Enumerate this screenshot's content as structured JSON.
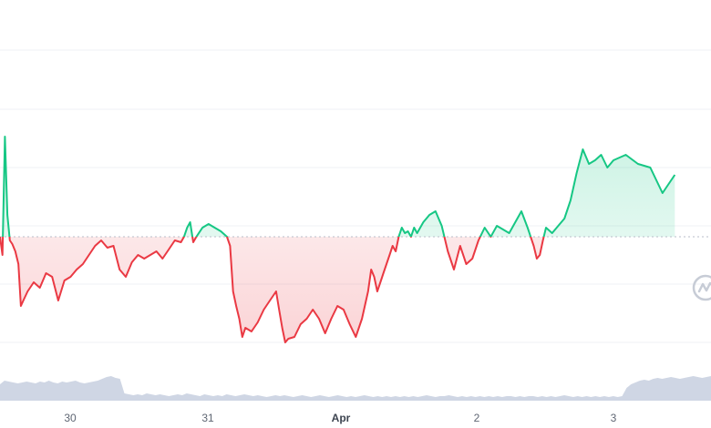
{
  "chart_data": {
    "type": "line",
    "title": "",
    "xlabel": "",
    "ylabel": "",
    "x_tick_labels": [
      "30",
      "31",
      "Apr",
      "2",
      "3"
    ],
    "x_tick_bold": [
      false,
      false,
      true,
      false,
      false
    ],
    "baseline_value": 0,
    "ylim": [
      -60,
      55
    ],
    "grid": true,
    "colors": {
      "up": "#16c784",
      "down": "#ea3943",
      "volume": "#cfd6e4",
      "grid": "#eff1f5",
      "baseline": "#b8bec9"
    },
    "icon": "watermark-logo-icon",
    "series": [
      {
        "x": [
          0,
          0.004,
          0.008,
          0.012,
          0.016,
          0.02,
          0.025,
          0.03,
          0.034,
          0.038,
          0.045,
          0.055,
          0.065,
          0.075,
          0.085,
          0.095,
          0.105,
          0.115,
          0.125,
          0.135,
          0.145,
          0.155,
          0.165,
          0.175,
          0.185,
          0.195,
          0.205,
          0.215,
          0.225,
          0.235,
          0.245,
          0.255,
          0.265,
          0.275,
          0.285,
          0.295,
          0.3,
          0.305,
          0.31,
          0.315,
          0.32,
          0.33,
          0.34,
          0.35,
          0.36,
          0.37,
          0.375,
          0.38,
          0.385,
          0.39,
          0.395,
          0.4,
          0.41,
          0.42,
          0.43,
          0.44,
          0.45,
          0.455,
          0.46,
          0.465,
          0.47,
          0.48,
          0.49,
          0.5,
          0.51,
          0.52,
          0.53,
          0.54,
          0.55,
          0.56,
          0.57,
          0.58,
          0.59,
          0.6,
          0.605,
          0.61,
          0.615,
          0.62,
          0.625,
          0.63,
          0.635,
          0.64,
          0.645,
          0.65,
          0.655,
          0.66,
          0.665,
          0.67,
          0.675,
          0.68,
          0.69,
          0.7,
          0.71,
          0.72,
          0.73,
          0.74,
          0.75,
          0.76,
          0.77,
          0.78,
          0.79,
          0.8
        ],
        "y": [
          0,
          -10,
          55,
          12,
          -2,
          -4,
          -8,
          -15,
          -38,
          -35,
          -30,
          -25,
          -28,
          -20,
          -22,
          -35,
          -24,
          -22,
          -18,
          -15,
          -10,
          -5,
          -2,
          -6,
          -5,
          -18,
          -22,
          -14,
          -10,
          -12,
          -10,
          -8,
          -12,
          -7,
          -2,
          -3,
          0,
          5,
          8,
          -3,
          0,
          5,
          7,
          5,
          3,
          0,
          -5,
          -30,
          -38,
          -45,
          -55,
          -50,
          -52,
          -47,
          -40,
          -35,
          -30,
          -40,
          -50,
          -58,
          -56,
          -55,
          -48,
          -45,
          -40,
          -45,
          -53,
          -45,
          -38,
          -40,
          -48,
          -55,
          -45,
          -30,
          -18,
          -22,
          -30,
          -25,
          -20,
          -15,
          -10,
          -5,
          -8,
          0,
          5,
          2,
          3,
          0,
          5,
          2,
          8,
          12,
          14,
          6,
          -8,
          -18,
          -5,
          -15,
          -12,
          -2,
          5,
          0
        ]
      },
      {
        "x": [
          0.8,
          0.81,
          0.82,
          0.83,
          0.84,
          0.85,
          0.86,
          0.87,
          0.875,
          0.88,
          0.885,
          0.89,
          0.9,
          0.91,
          0.92,
          0.93,
          0.94,
          0.95,
          0.96,
          0.97,
          0.98,
          0.99,
          1.0,
          1.02,
          1.04,
          1.06,
          1.08,
          1.1
        ],
        "y": [
          0,
          6,
          4,
          2,
          8,
          14,
          5,
          -5,
          -12,
          -10,
          -2,
          5,
          2,
          6,
          10,
          20,
          35,
          48,
          40,
          42,
          45,
          38,
          42,
          45,
          40,
          38,
          24,
          34
        ]
      }
    ],
    "volume": [
      18,
      22,
      21,
      20,
      19,
      20,
      21,
      20,
      19,
      21,
      20,
      22,
      20,
      19,
      21,
      20,
      21,
      22,
      20,
      19,
      20,
      21,
      22,
      24,
      26,
      27,
      25,
      24,
      8,
      7,
      6,
      7,
      6,
      8,
      7,
      6,
      7,
      6,
      5,
      6,
      7,
      6,
      8,
      7,
      6,
      5,
      7,
      6,
      5,
      6,
      5,
      7,
      6,
      5,
      6,
      7,
      6,
      5,
      6,
      5,
      4,
      5,
      6,
      5,
      6,
      5,
      4,
      5,
      6,
      5,
      4,
      5,
      6,
      5,
      4,
      5,
      6,
      5,
      4,
      5,
      4,
      5,
      6,
      5,
      4,
      5,
      4,
      5,
      4,
      5,
      4,
      5,
      4,
      5,
      4,
      5,
      6,
      5,
      4,
      5,
      5,
      6,
      5,
      4,
      5,
      4,
      5,
      4,
      5,
      4,
      5,
      4,
      5,
      4,
      5,
      5,
      4,
      5,
      4,
      5,
      5,
      4,
      5,
      4,
      5,
      4,
      5,
      6,
      5,
      4,
      5,
      4,
      5,
      4,
      5,
      4,
      5,
      4,
      5,
      4,
      5,
      14,
      18,
      20,
      22,
      23,
      22,
      24,
      25,
      24,
      25,
      26,
      25,
      24,
      25,
      26,
      27,
      26,
      25,
      26,
      27
    ]
  }
}
